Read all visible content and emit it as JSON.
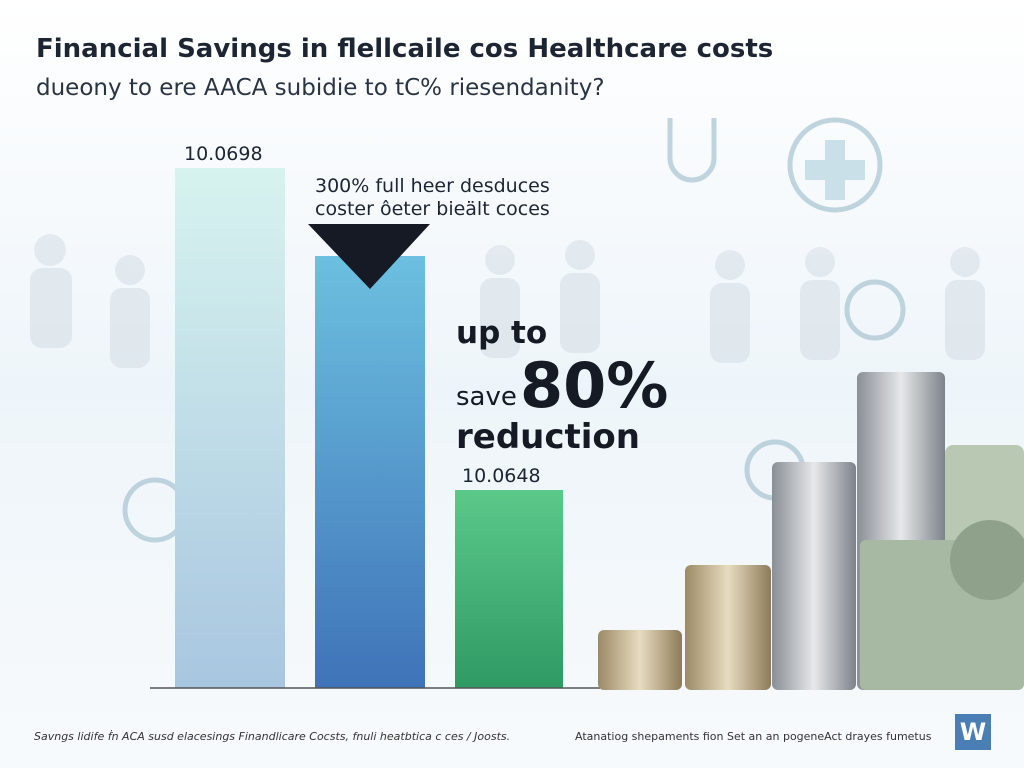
{
  "header": {
    "title": "Financial Savings in flellcaile cos Healthcare costs",
    "subtitle": "dueony to ere AACA subidie to tC% riesendanity?"
  },
  "bars": {
    "labels": [
      "10.0698",
      "10.0648"
    ]
  },
  "callout": {
    "lines": [
      "300% full heer desduces",
      "coster ôeter bieält coces"
    ]
  },
  "highlight": {
    "line1": "up to",
    "save": "save",
    "percent": "80%",
    "line3": "reduction"
  },
  "footer": {
    "left": "Savngs lidife ḟn ACA susd elacesings Finandlicare Cocsts, fnuli heatbtica c ces / Joosts.",
    "right": "Atanatiog shepaments fion Set an an pogeneAct drayes fumetus",
    "logo": "W"
  }
}
